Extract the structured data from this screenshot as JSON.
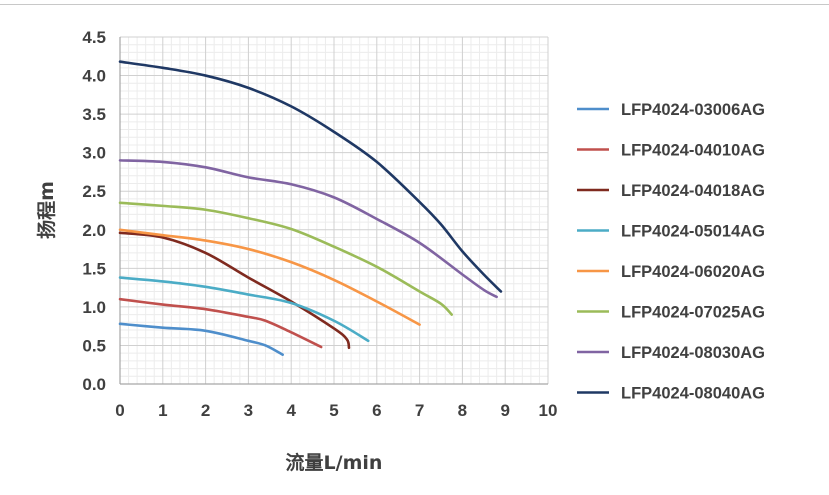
{
  "chart_data": {
    "type": "line",
    "title": "",
    "xlabel": "流量L/min",
    "ylabel": "扬程m",
    "xlim": [
      0,
      10
    ],
    "ylim": [
      0,
      4.5
    ],
    "xticks": [
      "0",
      "1",
      "2",
      "3",
      "4",
      "5",
      "6",
      "7",
      "8",
      "9",
      "10"
    ],
    "yticks": [
      "0.0",
      "0.5",
      "1.0",
      "1.5",
      "2.0",
      "2.5",
      "3.0",
      "3.5",
      "4.0",
      "4.5"
    ],
    "grid": true,
    "legend_position": "right",
    "series": [
      {
        "name": "LFP4024-03006AG",
        "color": "#4e8ecb",
        "points": [
          [
            0,
            0.78
          ],
          [
            1,
            0.73
          ],
          [
            2,
            0.69
          ],
          [
            3,
            0.56
          ],
          [
            3.4,
            0.5
          ],
          [
            3.8,
            0.38
          ]
        ]
      },
      {
        "name": "LFP4024-04010AG",
        "color": "#c0504d",
        "points": [
          [
            0,
            1.1
          ],
          [
            1,
            1.03
          ],
          [
            2,
            0.97
          ],
          [
            3,
            0.87
          ],
          [
            3.4,
            0.82
          ],
          [
            4,
            0.67
          ],
          [
            4.7,
            0.48
          ]
        ]
      },
      {
        "name": "LFP4024-04018AG",
        "color": "#7f2a1f",
        "points": [
          [
            0,
            1.96
          ],
          [
            1,
            1.9
          ],
          [
            2,
            1.7
          ],
          [
            3,
            1.38
          ],
          [
            4,
            1.07
          ],
          [
            5,
            0.72
          ],
          [
            5.3,
            0.58
          ],
          [
            5.35,
            0.47
          ]
        ]
      },
      {
        "name": "LFP4024-05014AG",
        "color": "#4bacc6",
        "points": [
          [
            0,
            1.38
          ],
          [
            1,
            1.33
          ],
          [
            2,
            1.26
          ],
          [
            3,
            1.16
          ],
          [
            4,
            1.05
          ],
          [
            5,
            0.82
          ],
          [
            5.8,
            0.56
          ]
        ]
      },
      {
        "name": "LFP4024-06020AG",
        "color": "#f79646",
        "points": [
          [
            0,
            2.0
          ],
          [
            1,
            1.93
          ],
          [
            2,
            1.86
          ],
          [
            3,
            1.75
          ],
          [
            4,
            1.58
          ],
          [
            5,
            1.35
          ],
          [
            6,
            1.07
          ],
          [
            7,
            0.77
          ]
        ]
      },
      {
        "name": "LFP4024-07025AG",
        "color": "#9bbb59",
        "points": [
          [
            0,
            2.35
          ],
          [
            1,
            2.31
          ],
          [
            2,
            2.26
          ],
          [
            3,
            2.15
          ],
          [
            4,
            2.01
          ],
          [
            5,
            1.78
          ],
          [
            6,
            1.52
          ],
          [
            7,
            1.2
          ],
          [
            7.5,
            1.04
          ],
          [
            7.75,
            0.9
          ]
        ]
      },
      {
        "name": "LFP4024-08030AG",
        "color": "#8064a2",
        "points": [
          [
            0,
            2.9
          ],
          [
            1,
            2.88
          ],
          [
            2,
            2.81
          ],
          [
            3,
            2.68
          ],
          [
            4,
            2.59
          ],
          [
            5,
            2.42
          ],
          [
            6,
            2.14
          ],
          [
            7,
            1.83
          ],
          [
            8,
            1.42
          ],
          [
            8.5,
            1.22
          ],
          [
            8.8,
            1.13
          ]
        ]
      },
      {
        "name": "LFP4024-08040AG",
        "color": "#1f3864",
        "points": [
          [
            0,
            4.18
          ],
          [
            1,
            4.1
          ],
          [
            2,
            4.0
          ],
          [
            3,
            3.84
          ],
          [
            4,
            3.6
          ],
          [
            5,
            3.27
          ],
          [
            6,
            2.88
          ],
          [
            7,
            2.36
          ],
          [
            7.5,
            2.07
          ],
          [
            8,
            1.72
          ],
          [
            8.5,
            1.42
          ],
          [
            8.9,
            1.2
          ]
        ]
      }
    ]
  }
}
